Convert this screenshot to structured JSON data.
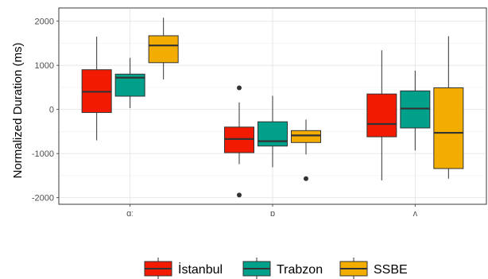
{
  "chart_data": {
    "type": "boxplot",
    "ylabel": "Normalized Duration (ms)",
    "xlabel": "",
    "categories": [
      "ɑː",
      "ɒ",
      "ʌ"
    ],
    "yticks": [
      -2000,
      -1000,
      0,
      1000,
      2000
    ],
    "ylim": [
      -2150,
      2300
    ],
    "grid": true,
    "legend": {
      "position": "bottom",
      "entries": [
        "İstanbul",
        "Trabzon",
        "SSBE"
      ]
    },
    "series": [
      {
        "name": "İstanbul",
        "color": "#F21A00",
        "boxes": [
          {
            "category": "ɑː",
            "whisker_low": -700,
            "q1": -70,
            "median": 400,
            "q3": 900,
            "whisker_high": 1650,
            "outliers": []
          },
          {
            "category": "ɒ",
            "whisker_low": -1240,
            "q1": -980,
            "median": -670,
            "q3": -400,
            "whisker_high": 160,
            "outliers": [
              490,
              -1940
            ]
          },
          {
            "category": "ʌ",
            "whisker_low": -1610,
            "q1": -620,
            "median": -330,
            "q3": 350,
            "whisker_high": 1340,
            "outliers": []
          }
        ]
      },
      {
        "name": "Trabzon",
        "color": "#00A08A",
        "boxes": [
          {
            "category": "ɑː",
            "whisker_low": 30,
            "q1": 300,
            "median": 720,
            "q3": 800,
            "whisker_high": 1170,
            "outliers": []
          },
          {
            "category": "ɒ",
            "whisker_low": -1310,
            "q1": -830,
            "median": -720,
            "q3": -280,
            "whisker_high": 310,
            "outliers": []
          },
          {
            "category": "ʌ",
            "whisker_low": -930,
            "q1": -420,
            "median": 20,
            "q3": 420,
            "whisker_high": 880,
            "outliers": []
          }
        ]
      },
      {
        "name": "SSBE",
        "color": "#F2AD00",
        "boxes": [
          {
            "category": "ɑː",
            "whisker_low": 680,
            "q1": 1060,
            "median": 1450,
            "q3": 1670,
            "whisker_high": 2080,
            "outliers": []
          },
          {
            "category": "ɒ",
            "whisker_low": -1020,
            "q1": -750,
            "median": -590,
            "q3": -480,
            "whisker_high": -230,
            "outliers": [
              -1570
            ]
          },
          {
            "category": "ʌ",
            "whisker_low": -1570,
            "q1": -1340,
            "median": -530,
            "q3": 490,
            "whisker_high": 1660,
            "outliers": []
          }
        ]
      }
    ]
  }
}
